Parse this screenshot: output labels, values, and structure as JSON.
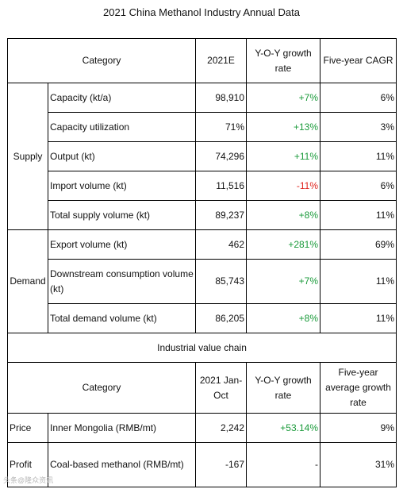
{
  "title": "2021 China Methanol Industry Annual Data",
  "header": {
    "category": "Category",
    "year": "2021E",
    "yoy": "Y-O-Y growth rate",
    "cagr": "Five-year CAGR"
  },
  "supply": {
    "label": "Supply",
    "rows": [
      {
        "item": "Capacity (kt/a)",
        "value": "98,910",
        "yoy": "+7%",
        "cagr": "6%"
      },
      {
        "item": "Capacity utilization",
        "value": "71%",
        "yoy": "+13%",
        "cagr": "3%"
      },
      {
        "item": "Output (kt)",
        "value": "74,296",
        "yoy": "+11%",
        "cagr": "11%"
      },
      {
        "item": "Import volume (kt)",
        "value": "11,516",
        "yoy": "-11%",
        "cagr": "6%"
      },
      {
        "item": "Total supply volume (kt)",
        "value": "89,237",
        "yoy": "+8%",
        "cagr": "11%"
      }
    ]
  },
  "demand": {
    "label": "Demand",
    "rows": [
      {
        "item": "Export volume (kt)",
        "value": "462",
        "yoy": "+281%",
        "cagr": "69%"
      },
      {
        "item": "Downstream consumption volume (kt)",
        "value": "85,743",
        "yoy": "+7%",
        "cagr": "11%"
      },
      {
        "item": "Total demand volume (kt)",
        "value": "86,205",
        "yoy": "+8%",
        "cagr": "11%"
      }
    ]
  },
  "value_chain": {
    "section_title": "Industrial value chain",
    "header": {
      "category": "Category",
      "period": "2021 Jan-Oct",
      "yoy": "Y-O-Y growth rate",
      "avg": "Five-year average growth rate"
    },
    "price": {
      "label": "Price",
      "item": "Inner Mongolia (RMB/mt)",
      "value": "2,242",
      "yoy": "+53.14%",
      "avg": "9%"
    },
    "profit": {
      "label": "Profit",
      "item": "Coal-based methanol (RMB/mt)",
      "value": "-167",
      "yoy": "-",
      "avg": "31%"
    }
  },
  "colors": {
    "positive": "#1a9a3a",
    "negative": "#e0241e"
  },
  "watermark": "头条@隆众资讯"
}
